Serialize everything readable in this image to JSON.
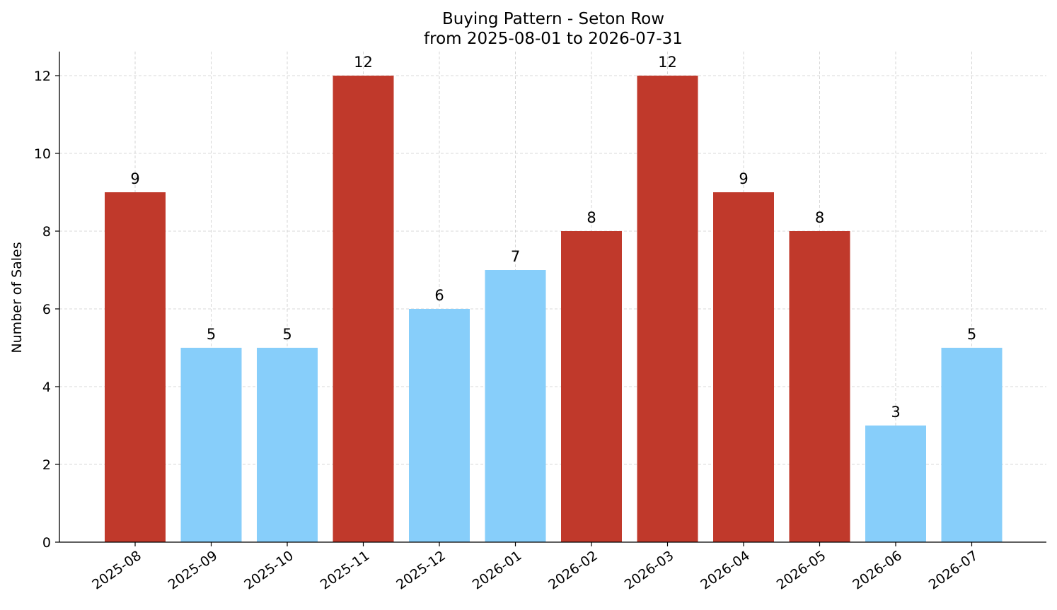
{
  "chart_data": {
    "type": "bar",
    "title": "Buying Pattern - Seton Row",
    "subtitle": "from 2025-08-01 to 2026-07-31",
    "xlabel": "",
    "ylabel": "Number of Sales",
    "ylim": [
      0,
      12.6
    ],
    "yticks": [
      0,
      2,
      4,
      6,
      8,
      10,
      12
    ],
    "categories": [
      "2025-08",
      "2025-09",
      "2025-10",
      "2025-11",
      "2025-12",
      "2026-01",
      "2026-02",
      "2026-03",
      "2026-04",
      "2026-05",
      "2026-06",
      "2026-07"
    ],
    "values": [
      9,
      5,
      5,
      12,
      6,
      7,
      8,
      12,
      9,
      8,
      3,
      5
    ],
    "bar_colors": [
      "#c0392b",
      "#87cefa",
      "#87cefa",
      "#c0392b",
      "#87cefa",
      "#87cefa",
      "#c0392b",
      "#c0392b",
      "#c0392b",
      "#c0392b",
      "#87cefa",
      "#87cefa"
    ],
    "grid": true,
    "data_labels": true
  }
}
